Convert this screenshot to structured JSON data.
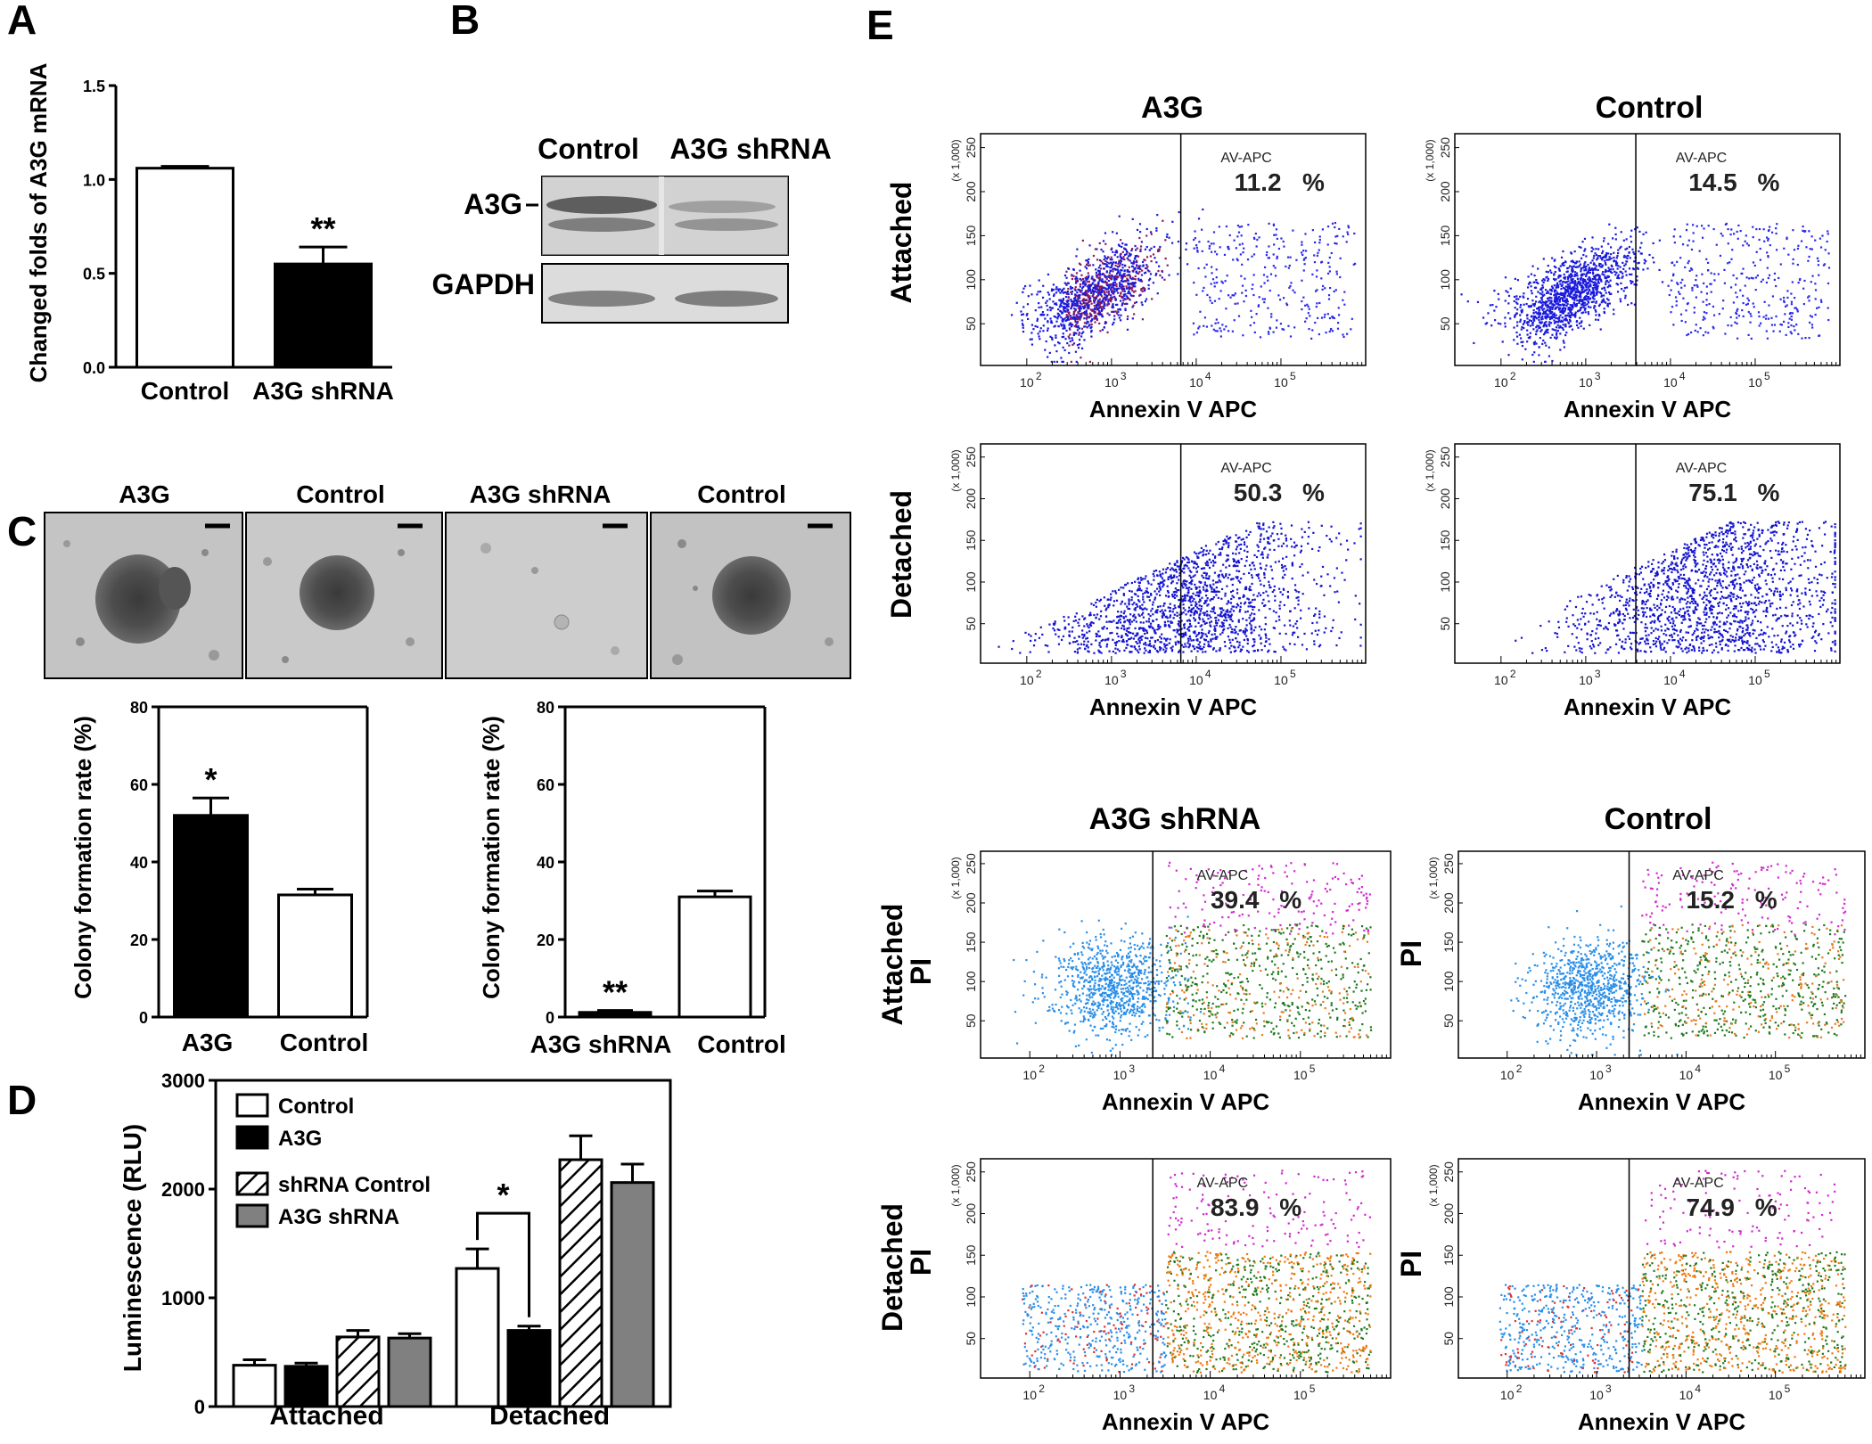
{
  "panels": {
    "A": {
      "letter": "A",
      "ylabel": "Changed folds of A3G mRNA",
      "ytick_labels": [
        "0.0",
        "0.5",
        "1.0",
        "1.5"
      ],
      "categories": [
        "Control",
        "A3G shRNA"
      ],
      "significance": "**"
    },
    "B": {
      "letter": "B",
      "lanes": [
        "Control",
        "A3G shRNA"
      ],
      "rows": [
        "A3G",
        "GAPDH"
      ]
    },
    "C": {
      "letter": "C",
      "image_titles": [
        "A3G",
        "Control",
        "A3G shRNA",
        "Control"
      ],
      "left_chart": {
        "ylabel": "Colony formation rate (%)",
        "categories": [
          "A3G",
          "Control"
        ],
        "significance": "*"
      },
      "right_chart": {
        "ylabel": "Colony formation rate (%)",
        "categories": [
          "A3G shRNA",
          "Control"
        ],
        "significance": "**"
      },
      "ytick_labels": [
        "0",
        "20",
        "40",
        "60",
        "80"
      ]
    },
    "D": {
      "letter": "D",
      "ylabel": "Luminescence (RLU)",
      "ytick_labels": [
        "0",
        "1000",
        "2000",
        "3000"
      ],
      "groups": [
        "Attached",
        "Detached"
      ],
      "legend": [
        "Control",
        "A3G",
        "shRNA Control",
        "A3G shRNA"
      ],
      "significance": "*"
    },
    "E": {
      "letter": "E",
      "column_titles_top": [
        "A3G",
        "Control"
      ],
      "column_titles_bottom": [
        "A3G shRNA",
        "Control"
      ],
      "row_labels": [
        "Attached",
        "Detached"
      ],
      "pi_label": "PI",
      "xlabel": "Annexin V APC",
      "gate_label": "AV-APC",
      "x1000_label": "(x 1,000)",
      "yticks": [
        "50",
        "100",
        "150",
        "200",
        "250"
      ],
      "xticks": [
        "10",
        "10",
        "10",
        "10"
      ],
      "xtick_exps": [
        "2",
        "3",
        "4",
        "5"
      ],
      "percentages": [
        "11.2",
        "14.5",
        "50.3",
        "75.1",
        "39.4",
        "15.2",
        "83.9",
        "74.9"
      ],
      "pct_symbol": "%"
    }
  },
  "chart_data": [
    {
      "type": "bar",
      "title": "A",
      "categories": [
        "Control",
        "A3G shRNA"
      ],
      "values": [
        1.06,
        0.55
      ],
      "errors": [
        0.01,
        0.09
      ],
      "xlabel": "",
      "ylabel": "Changed folds of A3G mRNA",
      "ylim": [
        0,
        1.5
      ]
    },
    {
      "type": "bar",
      "title": "C-left",
      "categories": [
        "A3G",
        "Control"
      ],
      "values": [
        52,
        31.5
      ],
      "errors": [
        4.5,
        1.5
      ],
      "xlabel": "",
      "ylabel": "Colony formation rate (%)",
      "ylim": [
        0,
        80
      ]
    },
    {
      "type": "bar",
      "title": "C-right",
      "categories": [
        "A3G shRNA",
        "Control"
      ],
      "values": [
        1.2,
        31
      ],
      "errors": [
        0.5,
        1.5
      ],
      "xlabel": "",
      "ylabel": "Colony formation rate (%)",
      "ylim": [
        0,
        80
      ]
    },
    {
      "type": "bar",
      "title": "D",
      "categories": [
        "Attached",
        "Detached"
      ],
      "series": [
        {
          "name": "Control",
          "values": [
            380,
            1270
          ],
          "errors": [
            50,
            180
          ]
        },
        {
          "name": "A3G",
          "values": [
            370,
            700
          ],
          "errors": [
            30,
            40
          ]
        },
        {
          "name": "shRNA Control",
          "values": [
            640,
            2270
          ],
          "errors": [
            60,
            220
          ]
        },
        {
          "name": "A3G shRNA",
          "values": [
            630,
            2060
          ],
          "errors": [
            40,
            170
          ]
        }
      ],
      "xlabel": "",
      "ylabel": "Luminescence (RLU)",
      "ylim": [
        0,
        3000
      ]
    }
  ]
}
